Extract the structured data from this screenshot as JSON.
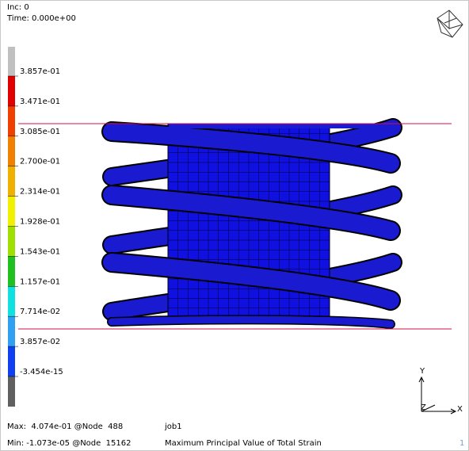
{
  "header": {
    "increment": "Inc:  0",
    "time": "Time:  0.000e+00"
  },
  "legend": {
    "labels": [
      "3.857e-01",
      "3.471e-01",
      "3.085e-01",
      "2.700e-01",
      "2.314e-01",
      "1.928e-01",
      "1.543e-01",
      "1.157e-01",
      "7.714e-02",
      "3.857e-02",
      "-3.454e-15"
    ]
  },
  "axes": {
    "y": "Y",
    "z": "Z",
    "x": "X"
  },
  "footer": {
    "max": "Max:  4.074e-01 @Node  488",
    "job": "job1",
    "min": "Min: -1.073e-05 @Node  15162",
    "quantity": "Maximum Principal Value of Total Strain",
    "window": "1"
  }
}
